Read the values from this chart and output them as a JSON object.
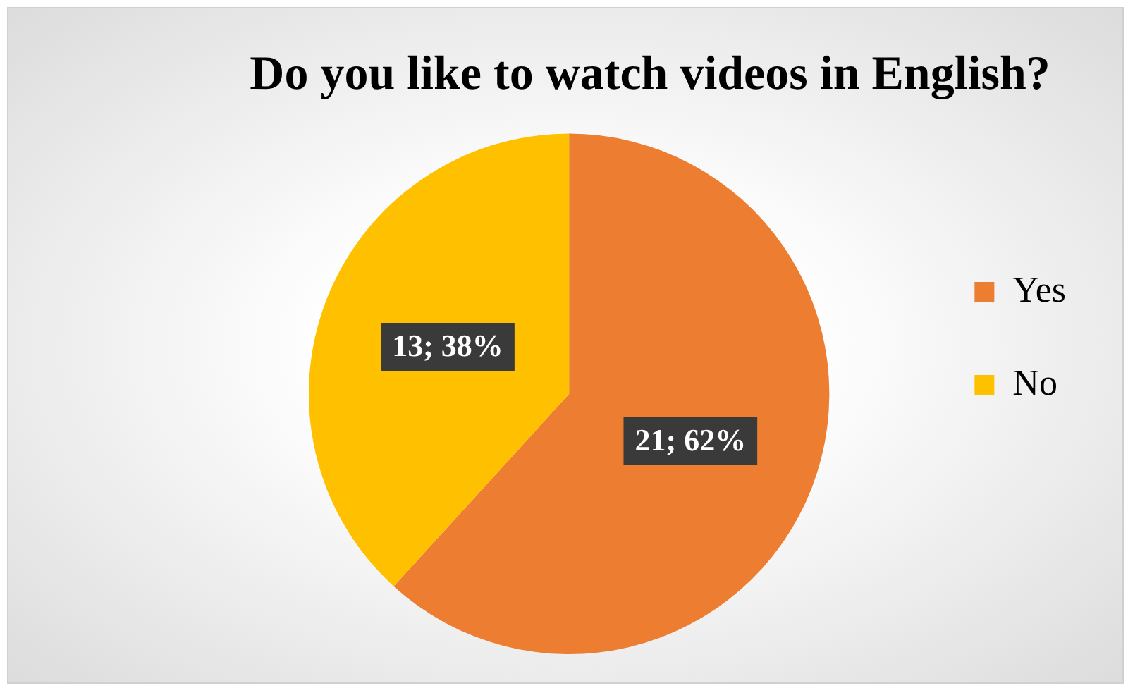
{
  "chart_data": {
    "type": "pie",
    "title": "Do you like to watch videos in English?",
    "categories": [
      "Yes",
      "No"
    ],
    "values": [
      21,
      13
    ],
    "colors": [
      "#ed7d31",
      "#ffc000"
    ],
    "value_labels": [
      "21; 62%",
      "13; 38%"
    ],
    "legend": "right"
  }
}
